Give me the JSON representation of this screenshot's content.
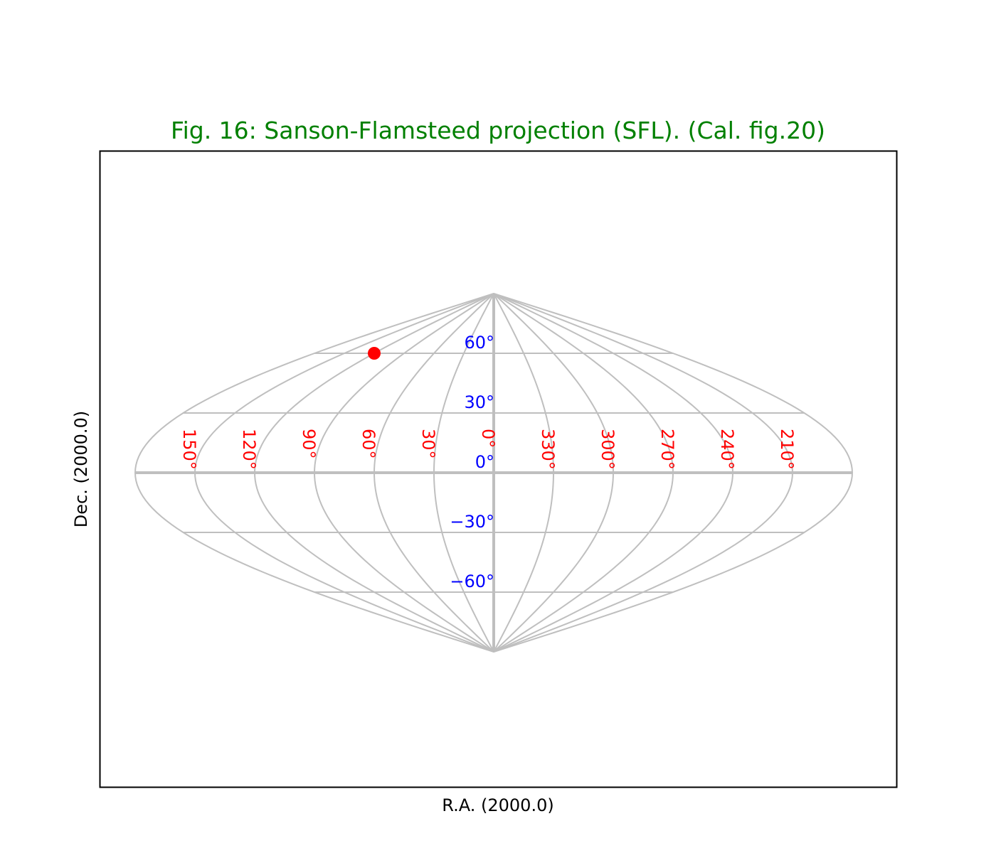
{
  "chart_data": {
    "type": "scatter",
    "projection": "Sanson-Flamsteed (SFL)",
    "title": "Fig. 16: Sanson-Flamsteed projection (SFL). (Cal. fig.20)",
    "title_color": "#008000",
    "xlabel": "R.A. (2000.0)",
    "ylabel": "Dec. (2000.0)",
    "meridians_deg": [
      180,
      150,
      120,
      90,
      60,
      30,
      0,
      330,
      300,
      270,
      240,
      210,
      180
    ],
    "parallels_deg": [
      -90,
      -60,
      -30,
      0,
      30,
      60,
      90
    ],
    "lon_tick_labels": [
      {
        "lon": 150,
        "text": "150°"
      },
      {
        "lon": 120,
        "text": "120°"
      },
      {
        "lon": 90,
        "text": "90°"
      },
      {
        "lon": 60,
        "text": "60°"
      },
      {
        "lon": 30,
        "text": "30°"
      },
      {
        "lon": 0,
        "text": "0°"
      },
      {
        "lon": 330,
        "text": "330°"
      },
      {
        "lon": 300,
        "text": "300°"
      },
      {
        "lon": 270,
        "text": "270°"
      },
      {
        "lon": 240,
        "text": "240°"
      },
      {
        "lon": 210,
        "text": "210°"
      }
    ],
    "lat_tick_labels": [
      {
        "lat": 60,
        "text": "60°"
      },
      {
        "lat": 30,
        "text": "30°"
      },
      {
        "lat": 0,
        "text": "0°"
      },
      {
        "lat": -30,
        "text": "−30°"
      },
      {
        "lat": -60,
        "text": "−60°"
      }
    ],
    "lon_label_color": "#ff0000",
    "lat_label_color": "#0000ff",
    "grid_color": "#bfbfbf",
    "points": [
      {
        "lon": 120,
        "lat": 60,
        "color": "#ff0000"
      }
    ]
  }
}
